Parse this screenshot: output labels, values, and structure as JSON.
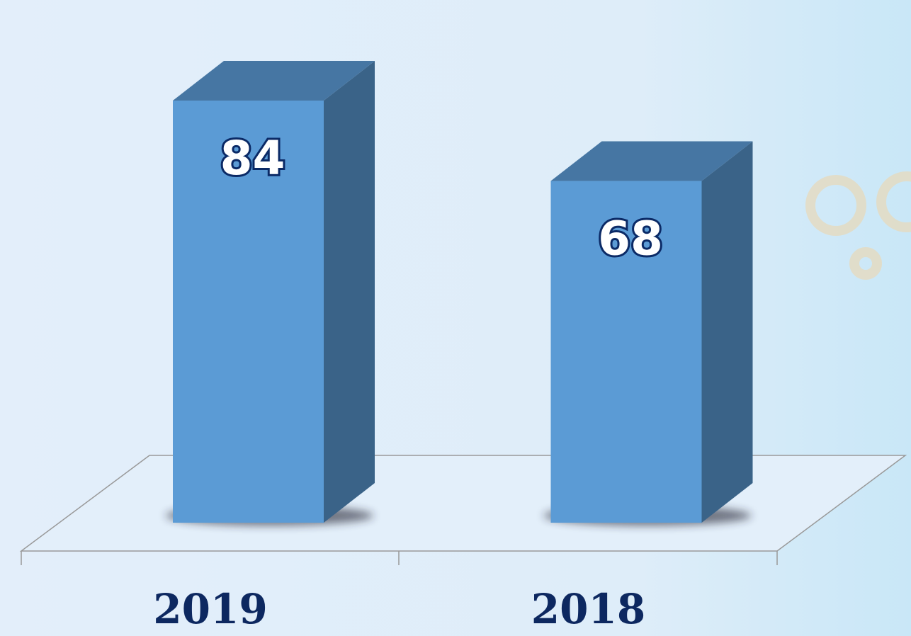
{
  "chart_data": {
    "type": "bar3d",
    "categories": [
      "2019",
      "2018"
    ],
    "values": [
      84,
      68
    ],
    "color": "#5b9bd5"
  }
}
